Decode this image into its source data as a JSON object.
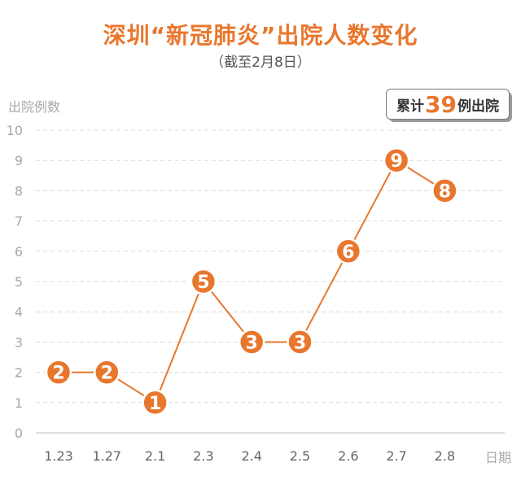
{
  "header": {
    "title": "深圳“新冠肺炎”出院人数变化",
    "subtitle": "（截至2月8日）"
  },
  "total_badge": {
    "prefix": "累计",
    "number": "39",
    "suffix": "例出院"
  },
  "colors": {
    "accent": "#e8772e",
    "grid": "#d9d9d9",
    "axis_text": "#a8a8a8"
  },
  "chart_data": {
    "type": "line",
    "categories": [
      "1.23",
      "1.27",
      "2.1",
      "2.3",
      "2.4",
      "2.5",
      "2.6",
      "2.7",
      "2.8"
    ],
    "series": [
      {
        "values": [
          2,
          2,
          1,
          5,
          3,
          3,
          6,
          9,
          8
        ]
      }
    ],
    "ylabel": "出院例数",
    "xlabel": "日期",
    "ylim": [
      0,
      10
    ],
    "yticks": [
      0,
      1,
      2,
      3,
      4,
      5,
      6,
      7,
      8,
      9,
      10
    ],
    "grid": true,
    "data_labels": true
  }
}
